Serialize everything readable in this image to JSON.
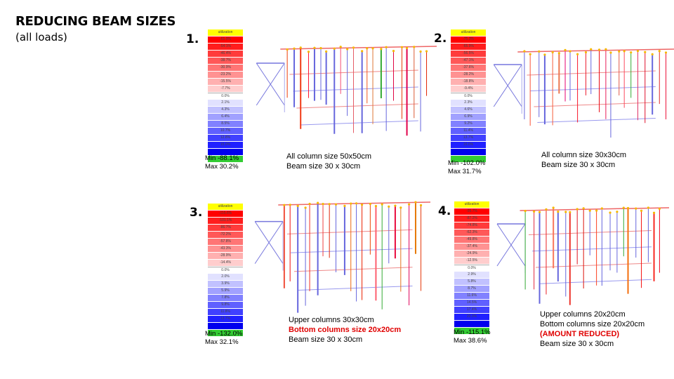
{
  "slide": {
    "title": "REDUCING BEAM SIZES",
    "subtitle": "(all loads)"
  },
  "colors": {
    "header": "#ffff00",
    "max_negative": "#ff0000",
    "max_positive": "#0000ff",
    "extra": "#33cc33",
    "emphasis": "#e00000"
  },
  "panels": [
    {
      "number": "1.",
      "legend_header": "utilization",
      "legend_values": [
        "-61.9%",
        "-54.1%",
        "-46.4%",
        "-38.7%",
        "-30.9%",
        "-23.2%",
        "-15.5%",
        "-7.7%",
        "0.0%",
        "2.1%",
        "4.3%",
        "6.4%",
        "8.5%",
        "10.7%",
        "12.8%",
        "15.0%",
        ""
      ],
      "min": "Min -88.1%",
      "max": "Max 30.2%",
      "caption": [
        "All column size 50x50cm",
        "Beam size 30 x 30cm"
      ]
    },
    {
      "number": "2.",
      "legend_header": "utilization",
      "legend_values": [
        "-75.3%",
        "-65.9%",
        "-56.5%",
        "-47.1%",
        "-37.6%",
        "-28.2%",
        "-18.8%",
        "-9.4%",
        "0.0%",
        "2.3%",
        "4.6%",
        "6.9%",
        "9.2%",
        "11.4%",
        "13.7%",
        "16.0%",
        ""
      ],
      "min": "Min -102.0%",
      "max": "Max 31.7%",
      "caption": [
        "All column size 30x30cm",
        "Beam size 30 x 30cm"
      ]
    },
    {
      "number": "3.",
      "legend_header": "utilization",
      "legend_values": [
        "-115.6%",
        "-101.1%",
        "-86.7%",
        "-72.2%",
        "-57.8%",
        "-43.3%",
        "-28.9%",
        "-14.4%",
        "0.0%",
        "2.0%",
        "3.9%",
        "5.9%",
        "7.8%",
        "9.8%",
        "11.8%",
        "13.7%",
        ""
      ],
      "min": "Min -132.0%",
      "max": "Max 32.1%",
      "caption": [
        "Upper columns 30x30cm",
        "Bottom columns size 20x20cm",
        "Beam size 30 x 30cm"
      ],
      "emphasis_line": 1
    },
    {
      "number": "4.",
      "legend_header": "utilization",
      "legend_values": [
        "-99.7%",
        "-87.2%",
        "-74.8%",
        "-62.3%",
        "-49.8%",
        "-37.4%",
        "-24.9%",
        "-12.5%",
        "0.0%",
        "2.9%",
        "5.8%",
        "8.7%",
        "11.6%",
        "14.5%",
        "17.4%",
        "20.3%",
        ""
      ],
      "min": "Min -115.1%",
      "max": "Max 38.6%",
      "caption": [
        "Upper columns 20x20cm",
        "Bottom columns size 20x20cm",
        "(AMOUNT REDUCED)",
        "Beam size 30 x 30cm"
      ],
      "emphasis_line": 2
    }
  ]
}
